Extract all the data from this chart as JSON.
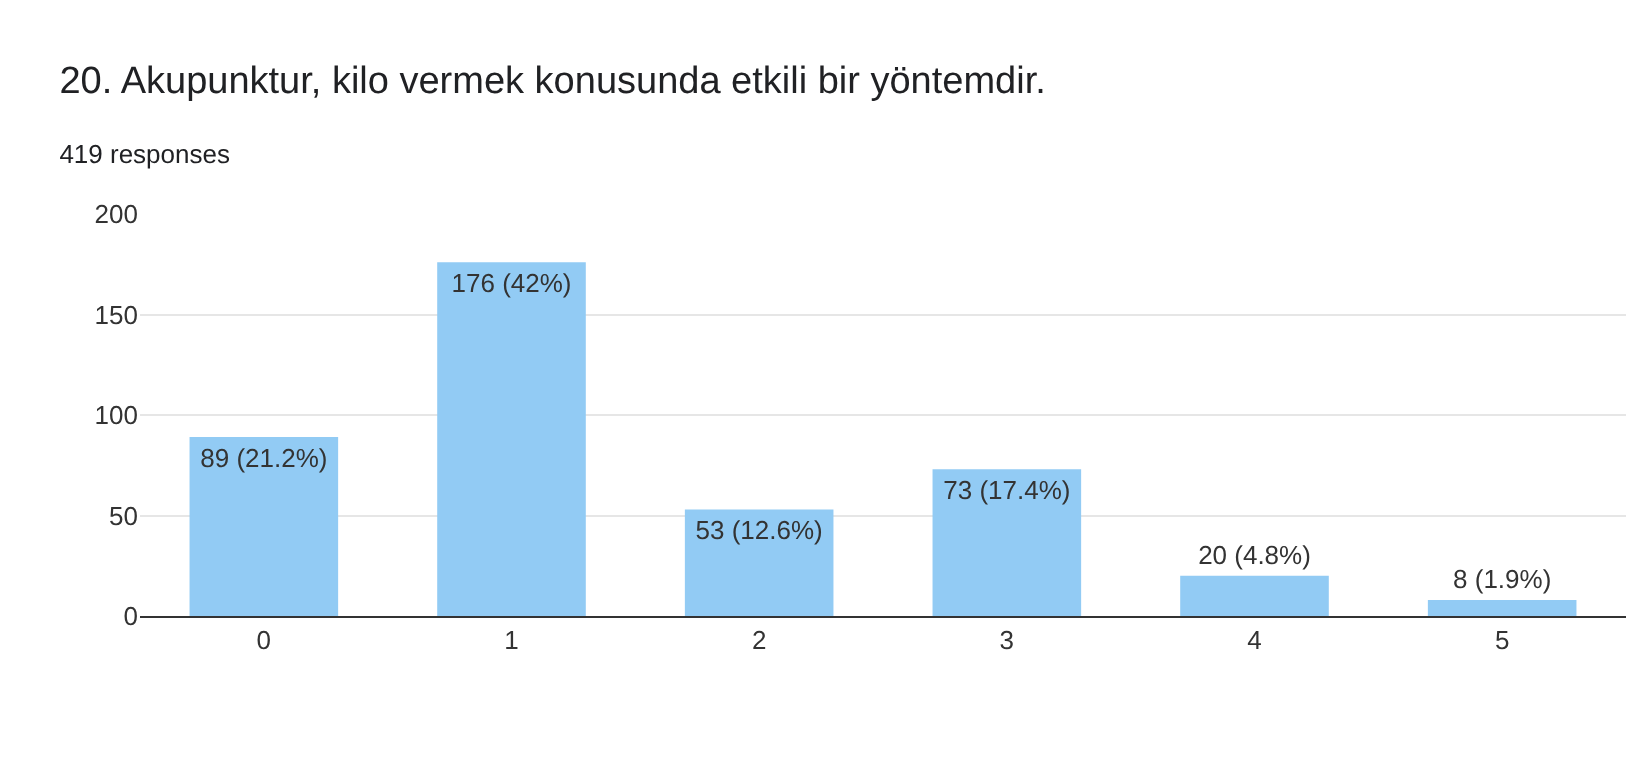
{
  "chart_data": {
    "type": "bar",
    "title": "20. Akupunktur, kilo vermek konusunda etkili bir yöntemdir.",
    "subtitle": "419 responses",
    "categories": [
      "0",
      "1",
      "2",
      "3",
      "4",
      "5"
    ],
    "values": [
      89,
      176,
      53,
      73,
      20,
      8
    ],
    "value_labels": [
      "89 (21.2%)",
      "176 (42%)",
      "53 (12.6%)",
      "73 (17.4%)",
      "20 (4.8%)",
      "8 (1.9%)"
    ],
    "color": "#92cbf4",
    "ylim": [
      0,
      200
    ],
    "yticks": [
      0,
      50,
      100,
      150,
      200
    ],
    "grid": "y",
    "legend": false
  }
}
